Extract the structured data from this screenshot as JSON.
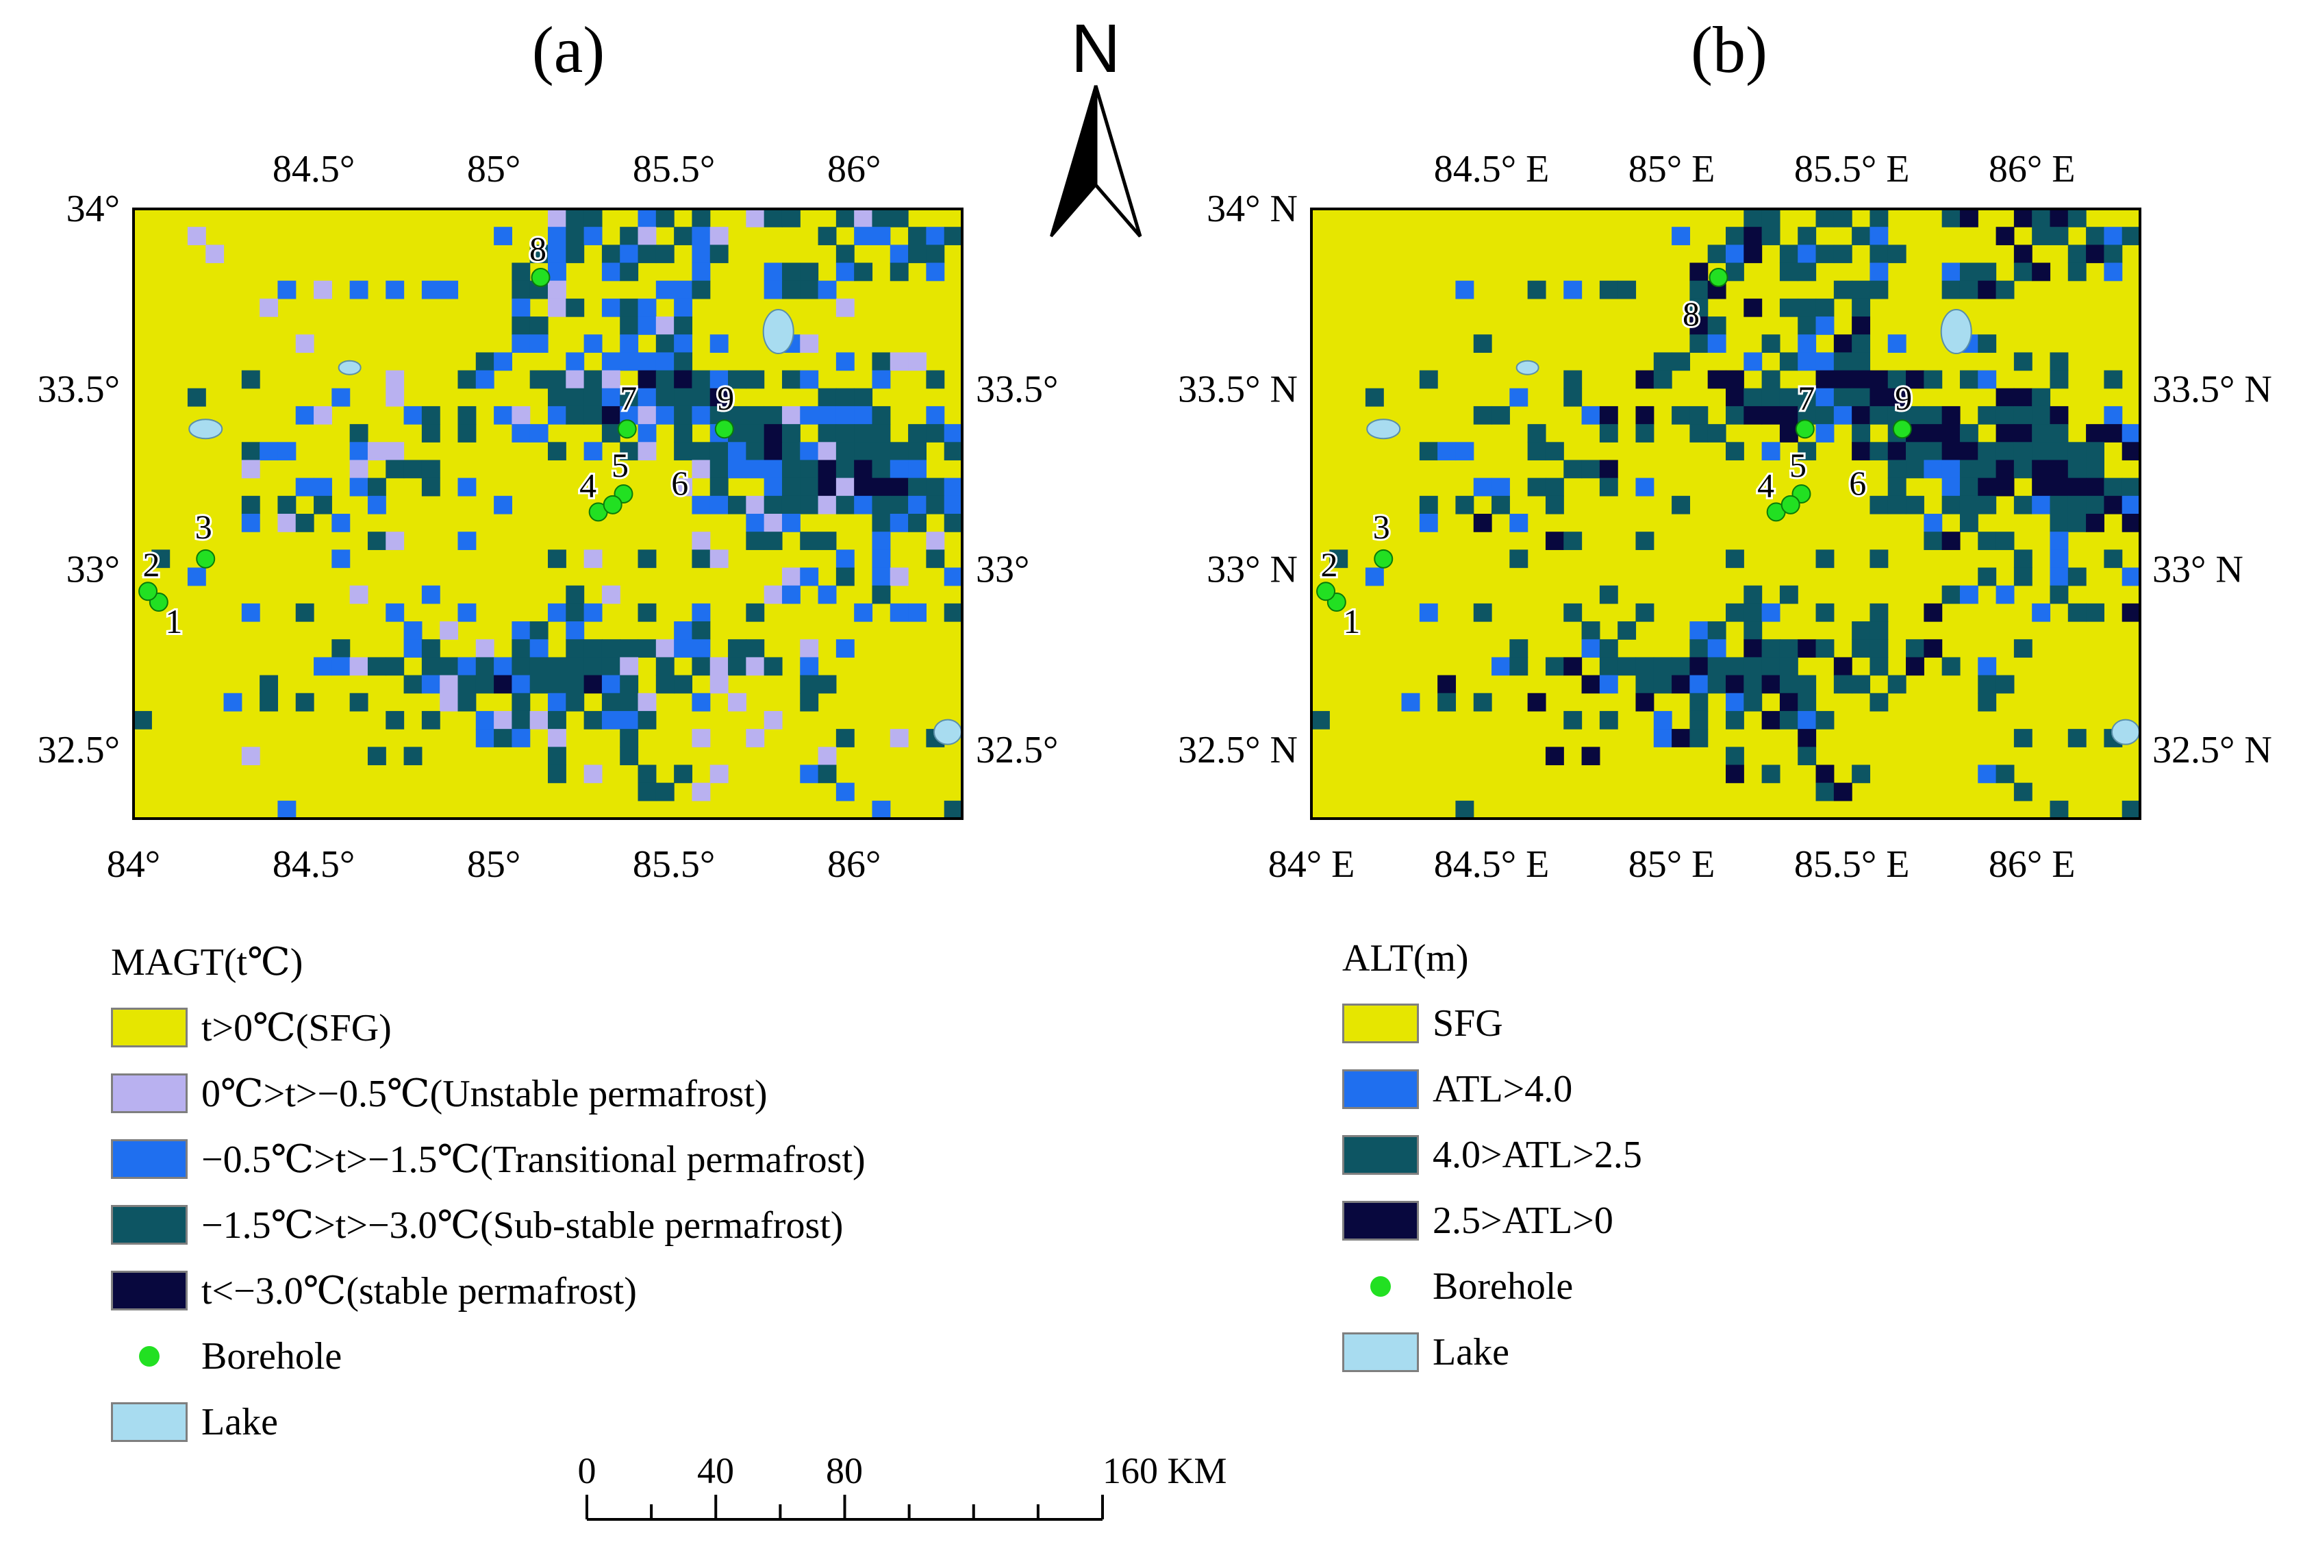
{
  "colors": {
    "sfg": "#e6e600",
    "unstable": "#b9b1f0",
    "transitional": "#1f6fef",
    "substable": "#0d5563",
    "stable": "#08083e",
    "lake": "#a8dcf0",
    "borehole": "#22e022",
    "atl_high": "#1f6fef",
    "atl_mid": "#0d5563",
    "atl_low": "#08083e"
  },
  "panel_a": {
    "label": "(a)",
    "top_ticks": [
      "84.5°",
      "85°",
      "85.5°",
      "86°"
    ],
    "bottom_ticks": [
      "84°",
      "84.5°",
      "85°",
      "85.5°",
      "86°"
    ],
    "left_ticks": [
      "34°",
      "33.5°",
      "33°",
      "32.5°"
    ],
    "right_ticks": [
      "33.5°",
      "33°",
      "32.5°"
    ]
  },
  "panel_b": {
    "label": "(b)",
    "top_ticks": [
      "84.5° E",
      "85° E",
      "85.5° E",
      "86° E"
    ],
    "bottom_ticks": [
      "84° E",
      "84.5° E",
      "85° E",
      "85.5° E",
      "86° E"
    ],
    "left_ticks": [
      "34° N",
      "33.5° N",
      "33° N",
      "32.5° N"
    ],
    "right_ticks": [
      "33.5° N",
      "33° N",
      "32.5° N"
    ]
  },
  "boreholes": [
    {
      "id": "1",
      "lon": 84.07,
      "lat": 32.91
    },
    {
      "id": "2",
      "lon": 84.04,
      "lat": 32.94
    },
    {
      "id": "3",
      "lon": 84.2,
      "lat": 33.03
    },
    {
      "id": "4",
      "lon": 85.29,
      "lat": 33.16
    },
    {
      "id": "5",
      "lon": 85.36,
      "lat": 33.21
    },
    {
      "id": "6",
      "lon": 85.33,
      "lat": 33.18
    },
    {
      "id": "7",
      "lon": 85.37,
      "lat": 33.39
    },
    {
      "id": "8",
      "lon": 85.13,
      "lat": 33.81
    },
    {
      "id": "9",
      "lon": 85.64,
      "lat": 33.39
    }
  ],
  "north_arrow": {
    "label": "N"
  },
  "scale_bar": {
    "labels": [
      "0",
      "40",
      "80",
      "160 KM"
    ]
  },
  "legend_a": {
    "title": "MAGT(t℃)",
    "items": [
      {
        "key": "sfg",
        "label": "t>0℃(SFG)"
      },
      {
        "key": "unstable",
        "label": "0℃>t>−0.5℃(Unstable permafrost)"
      },
      {
        "key": "transitional",
        "label": "−0.5℃>t>−1.5℃(Transitional permafrost)"
      },
      {
        "key": "substable",
        "label": "−1.5℃>t>−3.0℃(Sub-stable permafrost)"
      },
      {
        "key": "stable",
        "label": "t<−3.0℃(stable permafrost)"
      },
      {
        "key": "borehole",
        "label": "Borehole",
        "dot": true
      },
      {
        "key": "lake",
        "label": "Lake"
      }
    ]
  },
  "legend_b": {
    "title": "ALT(m)",
    "items": [
      {
        "key": "sfg",
        "label": "SFG"
      },
      {
        "key": "atl_high",
        "label": "ATL>4.0"
      },
      {
        "key": "atl_mid",
        "label": "4.0>ATL>2.5"
      },
      {
        "key": "atl_low",
        "label": "2.5>ATL>0"
      },
      {
        "key": "borehole",
        "label": "Borehole",
        "dot": true
      },
      {
        "key": "lake",
        "label": "Lake"
      }
    ]
  }
}
